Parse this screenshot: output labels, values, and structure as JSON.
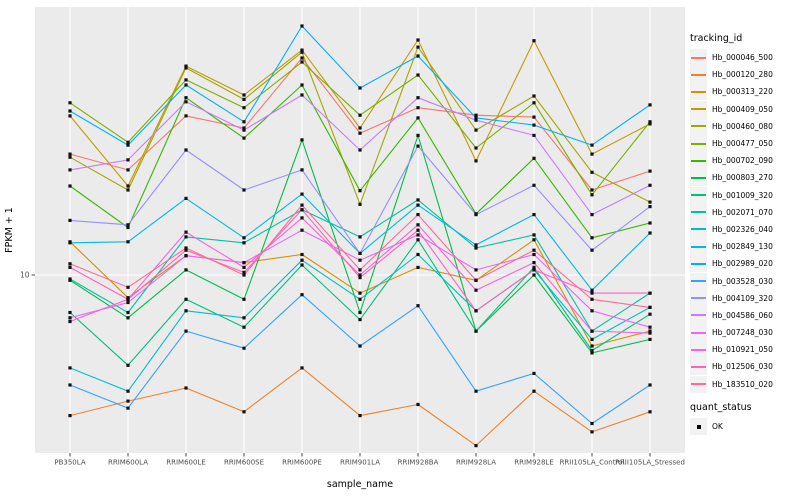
{
  "chart_data": {
    "type": "line",
    "title": "",
    "xlabel": "sample_name",
    "ylabel": "FPKM + 1",
    "y_scale": "log10",
    "y_ticks": [
      {
        "value": 10,
        "label": "10"
      }
    ],
    "ylim": [
      2.5,
      80
    ],
    "grid": "major-only",
    "categories": [
      "PB350LA",
      "RRIM600LA",
      "RRIM600LE",
      "RRIM600SE",
      "RRIM600PE",
      "RRIM901LA",
      "RRIM928BA",
      "RRIM928LA",
      "RRIM928LE",
      "RRII105LA_Control",
      "RRII105LA_Stressed"
    ],
    "series": [
      {
        "name": "Hb_000046_500",
        "color": "#F8766D",
        "values": [
          25.3,
          22.4,
          33.9,
          30.9,
          52.9,
          29.7,
          36.1,
          34.1,
          33.6,
          19.2,
          22.2
        ]
      },
      {
        "name": "Hb_000120_280",
        "color": "#EA8331",
        "values": [
          3.4,
          3.8,
          4.2,
          3.5,
          4.9,
          3.4,
          3.7,
          2.7,
          4.1,
          3.0,
          3.5
        ]
      },
      {
        "name": "Hb_000313_220",
        "color": "#D89000",
        "values": [
          12.9,
          8.4,
          11.6,
          11.0,
          11.7,
          8.7,
          10.6,
          9.6,
          13.1,
          5.8,
          6.5
        ]
      },
      {
        "name": "Hb_000409_050",
        "color": "#C09B00",
        "values": [
          33.9,
          19.8,
          49.7,
          39.8,
          56.2,
          30.9,
          60.7,
          24.0,
          60.4,
          25.3,
          31.9
        ]
      },
      {
        "name": "Hb_000460_080",
        "color": "#A3A500",
        "values": [
          24.7,
          19.2,
          49.0,
          38.5,
          55.3,
          17.2,
          57.5,
          30.4,
          39.5,
          22.0,
          17.5
        ]
      },
      {
        "name": "Hb_000477_050",
        "color": "#7CAE00",
        "values": [
          37.5,
          27.7,
          44.7,
          36.1,
          51.3,
          34.1,
          46.4,
          26.5,
          37.5,
          18.5,
          32.4
        ]
      },
      {
        "name": "Hb_000702_090",
        "color": "#39B600",
        "values": [
          19.8,
          14.4,
          39.0,
          28.6,
          43.0,
          19.1,
          33.4,
          16.0,
          24.5,
          13.3,
          14.9
        ]
      },
      {
        "name": "Hb_000803_270",
        "color": "#00BB4E",
        "values": [
          9.6,
          7.2,
          10.4,
          8.3,
          28.2,
          7.5,
          29.2,
          6.5,
          10.0,
          5.5,
          6.1
        ]
      },
      {
        "name": "Hb_001009_320",
        "color": "#00BF7D",
        "values": [
          7.5,
          5.0,
          8.3,
          6.7,
          10.8,
          7.1,
          13.1,
          6.5,
          10.6,
          5.6,
          7.4
        ]
      },
      {
        "name": "Hb_002071_070",
        "color": "#00C1A3",
        "values": [
          9.7,
          7.5,
          13.4,
          12.8,
          16.5,
          13.4,
          17.8,
          12.3,
          13.6,
          6.5,
          8.7
        ]
      },
      {
        "name": "Hb_002326_040",
        "color": "#00BFC4",
        "values": [
          4.9,
          4.1,
          7.6,
          7.2,
          11.2,
          8.3,
          11.7,
          7.6,
          10.4,
          6.1,
          7.8
        ]
      },
      {
        "name": "Hb_002849_130",
        "color": "#00BAE0",
        "values": [
          12.8,
          12.9,
          18.0,
          13.3,
          18.6,
          11.8,
          17.1,
          12.6,
          15.9,
          8.9,
          13.8
        ]
      },
      {
        "name": "Hb_002989_020",
        "color": "#00B0F6",
        "values": [
          35.2,
          27.1,
          43.0,
          32.4,
          67.6,
          42.0,
          53.7,
          33.4,
          31.6,
          27.1,
          36.9
        ]
      },
      {
        "name": "Hb_003528_030",
        "color": "#35A2FF",
        "values": [
          4.3,
          3.6,
          6.5,
          5.7,
          8.6,
          5.8,
          7.9,
          4.1,
          4.7,
          3.2,
          4.3
        ]
      },
      {
        "name": "Hb_004109_320",
        "color": "#9590FF",
        "values": [
          15.2,
          14.7,
          26.1,
          19.2,
          22.4,
          11.8,
          26.9,
          15.9,
          19.9,
          12.1,
          16.9
        ]
      },
      {
        "name": "Hb_004586_060",
        "color": "#C77CFF",
        "values": [
          22.4,
          24.2,
          37.8,
          30.4,
          39.8,
          26.1,
          39.0,
          32.8,
          29.2,
          15.9,
          19.9
        ]
      },
      {
        "name": "Hb_007248_030",
        "color": "#E76BF3",
        "values": [
          7.2,
          8.1,
          11.6,
          11.0,
          14.1,
          11.2,
          13.6,
          10.4,
          11.7,
          7.6,
          6.7
        ]
      },
      {
        "name": "Hb_010921_050",
        "color": "#FA62DB",
        "values": [
          7.0,
          8.3,
          13.9,
          10.6,
          15.5,
          10.0,
          14.7,
          8.9,
          11.0,
          6.5,
          6.4
        ]
      },
      {
        "name": "Hb_012506_030",
        "color": "#FF62BC",
        "values": [
          10.6,
          8.3,
          12.1,
          10.2,
          16.5,
          9.8,
          14.1,
          7.6,
          10.4,
          8.7,
          8.7
        ]
      },
      {
        "name": "Hb_183510_020",
        "color": "#FF6A98",
        "values": [
          10.9,
          9.1,
          12.3,
          10.0,
          17.1,
          10.4,
          15.9,
          9.6,
          12.1,
          8.3,
          7.8
        ]
      }
    ],
    "legend": {
      "title": "tracking_id",
      "position": "right"
    },
    "legend2": {
      "title": "quant_status",
      "items": [
        {
          "label": "OK",
          "shape": "filled-square",
          "color": "#000000"
        }
      ]
    },
    "panel": {
      "background": "#EBEBEB",
      "grid_color": "#FFFFFF",
      "point_color": "#111111",
      "tick_color": "#333333",
      "tick_label_color": "#4D4D4D"
    }
  }
}
